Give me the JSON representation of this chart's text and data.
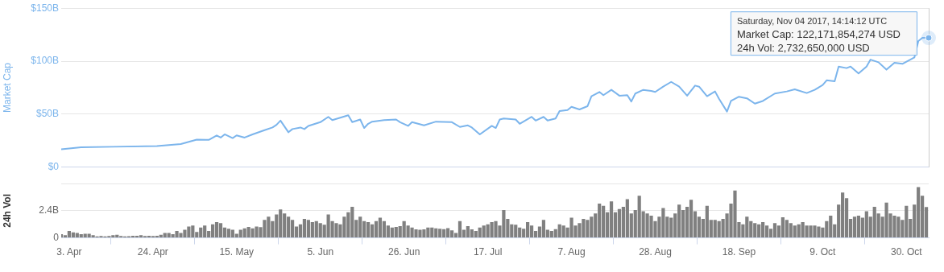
{
  "chart_data": [
    {
      "type": "line",
      "ylabel": "Market Cap",
      "tick_labels": "y",
      "grid": "y",
      "marker": "none",
      "line_style": "solid",
      "xlim": [
        "2017-04-01",
        "2017-11-04T14:14"
      ],
      "ylim": [
        0,
        150
      ],
      "yticks": [
        {
          "value": 0,
          "label": "$0"
        },
        {
          "value": 50,
          "label": "$50B"
        },
        {
          "value": 100,
          "label": "$100B"
        },
        {
          "value": 150,
          "label": "$150B"
        }
      ],
      "series": [
        {
          "color": "#7cb5ec",
          "x": [
            "2017-04-01",
            "2017-04-06",
            "2017-04-14",
            "2017-04-25",
            "2017-05-01",
            "2017-05-05",
            "2017-05-08",
            "2017-05-10",
            "2017-05-11",
            "2017-05-12",
            "2017-05-14",
            "2017-05-15",
            "2017-05-17",
            "2017-05-19",
            "2017-05-22",
            "2017-05-24",
            "2017-05-25",
            "2017-05-26",
            "2017-05-28",
            "2017-05-29",
            "2017-05-31",
            "2017-06-01",
            "2017-06-02",
            "2017-06-05",
            "2017-06-07",
            "2017-06-08",
            "2017-06-12",
            "2017-06-13",
            "2017-06-15",
            "2017-06-16",
            "2017-06-17",
            "2017-06-18",
            "2017-06-21",
            "2017-06-24",
            "2017-06-25",
            "2017-06-27",
            "2017-06-28",
            "2017-07-01",
            "2017-07-04",
            "2017-07-08",
            "2017-07-10",
            "2017-07-12",
            "2017-07-13",
            "2017-07-15",
            "2017-07-18",
            "2017-07-19",
            "2017-07-20",
            "2017-07-21",
            "2017-07-24",
            "2017-07-25",
            "2017-07-28",
            "2017-07-29",
            "2017-07-31",
            "2017-08-01",
            "2017-08-03",
            "2017-08-04",
            "2017-08-06",
            "2017-08-07",
            "2017-08-09",
            "2017-08-11",
            "2017-08-12",
            "2017-08-14",
            "2017-08-15",
            "2017-08-17",
            "2017-08-19",
            "2017-08-21",
            "2017-08-22",
            "2017-08-23",
            "2017-08-25",
            "2017-08-27",
            "2017-08-28",
            "2017-08-30",
            "2017-09-01",
            "2017-09-03",
            "2017-09-05",
            "2017-09-07",
            "2017-09-08",
            "2017-09-10",
            "2017-09-12",
            "2017-09-13",
            "2017-09-15",
            "2017-09-16",
            "2017-09-18",
            "2017-09-20",
            "2017-09-22",
            "2017-09-24",
            "2017-09-27",
            "2017-09-30",
            "2017-10-02",
            "2017-10-05",
            "2017-10-07",
            "2017-10-09",
            "2017-10-10",
            "2017-10-12",
            "2017-10-13",
            "2017-10-15",
            "2017-10-16",
            "2017-10-18",
            "2017-10-20",
            "2017-10-21",
            "2017-10-23",
            "2017-10-25",
            "2017-10-27",
            "2017-10-29",
            "2017-11-01",
            "2017-11-02",
            "2017-11-03",
            "2017-11-04T14:14"
          ],
          "values": [
            17,
            18.8,
            19.3,
            20,
            21.8,
            26,
            25.8,
            30,
            28,
            31,
            27.5,
            30,
            28,
            31,
            35,
            37.5,
            40,
            44,
            33,
            36,
            37.5,
            36,
            39,
            42.5,
            47.5,
            44.5,
            49,
            42.5,
            45,
            37,
            41,
            43,
            44.5,
            45,
            42.5,
            39,
            42.5,
            39.5,
            43,
            42.5,
            38,
            39.5,
            37.5,
            31,
            39,
            37,
            45,
            46,
            45,
            41,
            47.5,
            44,
            47.5,
            44,
            46,
            53,
            54,
            57,
            54.5,
            57.5,
            67,
            71,
            68,
            73,
            67.5,
            68,
            62,
            69.5,
            73,
            72,
            71,
            76,
            80.5,
            76,
            67.5,
            77,
            76,
            67,
            71.5,
            64.5,
            52.5,
            62.5,
            66.5,
            65,
            60,
            62.5,
            69.5,
            71.5,
            73.5,
            70,
            73,
            77.5,
            82,
            81,
            95,
            93.5,
            95,
            88.5,
            95,
            101.5,
            99,
            92,
            98.5,
            97.5,
            103.5,
            119,
            122,
            122
          ]
        }
      ],
      "annotations": [
        {
          "text": "Saturday, Nov 04 2017, 14:14:12 UTC\nMarket Cap: 122,171,854,274 USD\n24h Vol: 2,732,650,000 USD",
          "x": "2017-11-04T14:14",
          "y": 122
        }
      ]
    },
    {
      "type": "bar",
      "ylabel": "24h Vol",
      "grid": "y",
      "xlim": [
        "2017-04-01",
        "2017-11-04T14:14"
      ],
      "ylim": [
        0,
        4.8
      ],
      "xticks": [
        {
          "value": "2017-04-03",
          "label": "3. Apr"
        },
        {
          "value": "2017-04-24",
          "label": "24. Apr"
        },
        {
          "value": "2017-05-15",
          "label": "15. May"
        },
        {
          "value": "2017-06-05",
          "label": "5. Jun"
        },
        {
          "value": "2017-06-26",
          "label": "26. Jun"
        },
        {
          "value": "2017-07-17",
          "label": "17. Jul"
        },
        {
          "value": "2017-08-07",
          "label": "7. Aug"
        },
        {
          "value": "2017-08-28",
          "label": "28. Aug"
        },
        {
          "value": "2017-09-18",
          "label": "18. Sep"
        },
        {
          "value": "2017-10-09",
          "label": "9. Oct"
        },
        {
          "value": "2017-10-30",
          "label": "30. Oct"
        }
      ],
      "yticks": [
        0,
        {
          "value": 2.4,
          "label": "2.4B"
        },
        {
          "value": 4.8,
          "label": null
        }
      ],
      "series": [
        {
          "color": "#808080",
          "x": [
            "2017-04-01",
            "2017-04-02",
            "2017-04-03",
            "2017-04-04",
            "2017-04-05",
            "2017-04-06",
            "2017-04-07",
            "2017-04-08",
            "2017-04-09",
            "2017-04-10",
            "2017-04-11",
            "2017-04-12",
            "2017-04-13",
            "2017-04-14",
            "2017-04-15",
            "2017-04-16",
            "2017-04-17",
            "2017-04-18",
            "2017-04-19",
            "2017-04-20",
            "2017-04-21",
            "2017-04-22",
            "2017-04-23",
            "2017-04-24",
            "2017-04-25",
            "2017-04-26",
            "2017-04-27",
            "2017-04-28",
            "2017-04-29",
            "2017-04-30",
            "2017-05-01",
            "2017-05-02",
            "2017-05-03",
            "2017-05-04",
            "2017-05-05",
            "2017-05-06",
            "2017-05-07",
            "2017-05-08",
            "2017-05-09",
            "2017-05-10",
            "2017-05-11",
            "2017-05-12",
            "2017-05-13",
            "2017-05-14",
            "2017-05-15",
            "2017-05-16",
            "2017-05-17",
            "2017-05-18",
            "2017-05-19",
            "2017-05-20",
            "2017-05-21",
            "2017-05-22",
            "2017-05-23",
            "2017-05-24",
            "2017-05-25",
            "2017-05-26",
            "2017-05-27",
            "2017-05-28",
            "2017-05-29",
            "2017-05-30",
            "2017-05-31",
            "2017-06-01",
            "2017-06-02",
            "2017-06-03",
            "2017-06-04",
            "2017-06-05",
            "2017-06-06",
            "2017-06-07",
            "2017-06-08",
            "2017-06-09",
            "2017-06-10",
            "2017-06-11",
            "2017-06-12",
            "2017-06-13",
            "2017-06-14",
            "2017-06-15",
            "2017-06-16",
            "2017-06-17",
            "2017-06-18",
            "2017-06-19",
            "2017-06-20",
            "2017-06-21",
            "2017-06-22",
            "2017-06-23",
            "2017-06-24",
            "2017-06-25",
            "2017-06-26",
            "2017-06-27",
            "2017-06-28",
            "2017-06-29",
            "2017-06-30",
            "2017-07-01",
            "2017-07-02",
            "2017-07-03",
            "2017-07-04",
            "2017-07-05",
            "2017-07-06",
            "2017-07-07",
            "2017-07-08",
            "2017-07-09",
            "2017-07-10",
            "2017-07-11",
            "2017-07-12",
            "2017-07-13",
            "2017-07-14",
            "2017-07-15",
            "2017-07-16",
            "2017-07-17",
            "2017-07-18",
            "2017-07-19",
            "2017-07-20",
            "2017-07-21",
            "2017-07-22",
            "2017-07-23",
            "2017-07-24",
            "2017-07-25",
            "2017-07-26",
            "2017-07-27",
            "2017-07-28",
            "2017-07-29",
            "2017-07-30",
            "2017-07-31",
            "2017-08-01",
            "2017-08-02",
            "2017-08-03",
            "2017-08-04",
            "2017-08-05",
            "2017-08-06",
            "2017-08-07",
            "2017-08-08",
            "2017-08-09",
            "2017-08-10",
            "2017-08-11",
            "2017-08-12",
            "2017-08-13",
            "2017-08-14",
            "2017-08-15",
            "2017-08-16",
            "2017-08-17",
            "2017-08-18",
            "2017-08-19",
            "2017-08-20",
            "2017-08-21",
            "2017-08-22",
            "2017-08-23",
            "2017-08-24",
            "2017-08-25",
            "2017-08-26",
            "2017-08-27",
            "2017-08-28",
            "2017-08-29",
            "2017-08-30",
            "2017-08-31",
            "2017-09-01",
            "2017-09-02",
            "2017-09-03",
            "2017-09-04",
            "2017-09-05",
            "2017-09-06",
            "2017-09-07",
            "2017-09-08",
            "2017-09-09",
            "2017-09-10",
            "2017-09-11",
            "2017-09-12",
            "2017-09-13",
            "2017-09-14",
            "2017-09-15",
            "2017-09-16",
            "2017-09-17",
            "2017-09-18",
            "2017-09-19",
            "2017-09-20",
            "2017-09-21",
            "2017-09-22",
            "2017-09-23",
            "2017-09-24",
            "2017-09-25",
            "2017-09-26",
            "2017-09-27",
            "2017-09-28",
            "2017-09-29",
            "2017-09-30",
            "2017-10-01",
            "2017-10-02",
            "2017-10-03",
            "2017-10-04",
            "2017-10-05",
            "2017-10-06",
            "2017-10-07",
            "2017-10-08",
            "2017-10-09",
            "2017-10-10",
            "2017-10-11",
            "2017-10-12",
            "2017-10-13",
            "2017-10-14",
            "2017-10-15",
            "2017-10-16",
            "2017-10-17",
            "2017-10-18",
            "2017-10-19",
            "2017-10-20",
            "2017-10-21",
            "2017-10-22",
            "2017-10-23",
            "2017-10-24",
            "2017-10-25",
            "2017-10-26",
            "2017-10-27",
            "2017-10-28",
            "2017-10-29",
            "2017-10-30",
            "2017-10-31",
            "2017-11-01",
            "2017-11-02",
            "2017-11-03",
            "2017-11-04"
          ],
          "values": [
            0.33,
            0.23,
            0.62,
            0.48,
            0.43,
            0.33,
            0.37,
            0.37,
            0.23,
            0.14,
            0.17,
            0.14,
            0.17,
            0.23,
            0.27,
            0.17,
            0.14,
            0.15,
            0.19,
            0.19,
            0.23,
            0.17,
            0.19,
            0.17,
            0.19,
            0.27,
            0.43,
            0.43,
            0.33,
            0.62,
            0.43,
            0.72,
            1.0,
            1.1,
            0.52,
            0.91,
            1.1,
            0.62,
            1.2,
            1.39,
            1.3,
            0.91,
            0.81,
            0.72,
            0.37,
            0.72,
            0.85,
            0.97,
            0.85,
            1.0,
            0.95,
            1.59,
            1.88,
            1.49,
            2.07,
            2.52,
            2.17,
            1.88,
            1.59,
            1.0,
            1.2,
            1.68,
            1.59,
            1.39,
            1.49,
            1.3,
            1.16,
            2.07,
            1.49,
            1.3,
            1.2,
            1.88,
            2.26,
            2.75,
            1.59,
            1.88,
            1.49,
            1.39,
            1.2,
            1.49,
            1.78,
            1.49,
            1.1,
            0.91,
            0.97,
            1.04,
            1.49,
            1.1,
            0.91,
            0.75,
            0.72,
            0.75,
            0.91,
            0.91,
            0.85,
            0.81,
            0.77,
            0.87,
            0.66,
            0.43,
            1.49,
            0.72,
            1.04,
            0.75,
            0.62,
            0.91,
            1.1,
            1.2,
            1.39,
            1.49,
            1.1,
            2.46,
            1.68,
            1.2,
            1.16,
            0.91,
            0.81,
            1.39,
            1.1,
            0.62,
            1.0,
            1.59,
            0.72,
            0.62,
            0.77,
            1.2,
            1.1,
            0.91,
            1.78,
            1.1,
            1.3,
            1.68,
            1.59,
            1.88,
            2.17,
            3.04,
            2.84,
            2.26,
            3.23,
            2.26,
            2.55,
            2.75,
            3.42,
            2.17,
            2.46,
            3.72,
            2.36,
            2.17,
            1.97,
            1.49,
            1.88,
            2.65,
            1.88,
            1.78,
            2.17,
            2.94,
            2.46,
            2.75,
            3.37,
            2.36,
            1.88,
            1.68,
            2.84,
            1.59,
            1.59,
            1.49,
            1.68,
            2.17,
            3.04,
            4.2,
            1.39,
            1.2,
            1.88,
            1.49,
            1.3,
            1.2,
            1.39,
            1.1,
            0.81,
            1.3,
            1.1,
            1.82,
            1.59,
            1.3,
            1.1,
            1.2,
            1.39,
            1.1,
            1.1,
            1.1,
            1.0,
            0.91,
            1.49,
            1.97,
            1.2,
            2.94,
            4.01,
            3.52,
            1.68,
            1.88,
            1.97,
            1.78,
            2.36,
            1.88,
            2.75,
            2.17,
            1.88,
            3.13,
            2.17,
            1.97,
            1.88,
            1.59,
            2.84,
            1.68,
            2.94,
            4.49,
            3.72,
            2.73
          ]
        }
      ]
    }
  ]
}
